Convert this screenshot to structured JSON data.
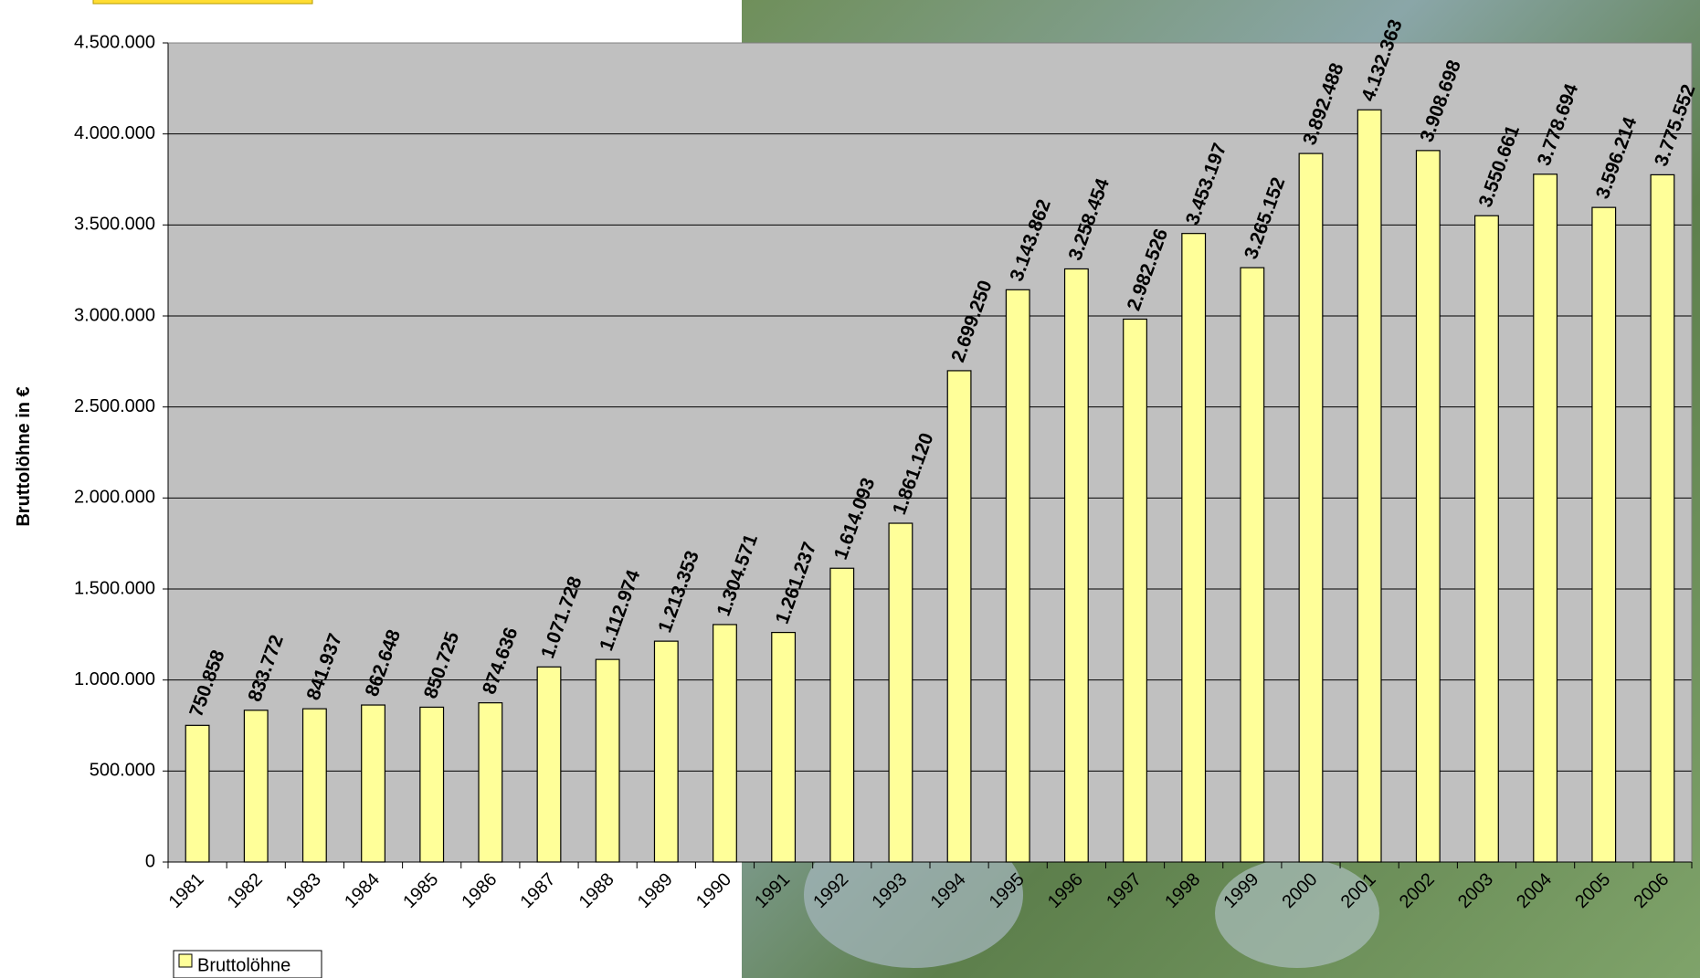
{
  "chart_data": {
    "type": "bar",
    "ylabel": "Bruttolöhne in €",
    "categories": [
      "1981",
      "1982",
      "1983",
      "1984",
      "1985",
      "1986",
      "1987",
      "1988",
      "1989",
      "1990",
      "1991",
      "1992",
      "1993",
      "1994",
      "1995",
      "1996",
      "1997",
      "1998",
      "1999",
      "2000",
      "2001",
      "2002",
      "2003",
      "2004",
      "2005",
      "2006"
    ],
    "series": [
      {
        "name": "Bruttolöhne",
        "color": "#ffff99",
        "values": [
          750858,
          833772,
          841937,
          862648,
          850725,
          874636,
          1071728,
          1112974,
          1213353,
          1304571,
          1261237,
          1614093,
          1861120,
          2699250,
          3143862,
          3258454,
          2982526,
          3453197,
          3265152,
          3892488,
          4132363,
          3908698,
          3550661,
          3778694,
          3596214,
          3775552
        ],
        "value_labels": [
          "750.858",
          "833.772",
          "841.937",
          "862.648",
          "850.725",
          "874.636",
          "1.071.728",
          "1.112.974",
          "1.213.353",
          "1.304.571",
          "1.261.237",
          "1.614.093",
          "1.861.120",
          "2.699.250",
          "3.143.862",
          "3.258.454",
          "2.982.526",
          "3.453.197",
          "3.265.152",
          "3.892.488",
          "4.132.363",
          "3.908.698",
          "3.550.661",
          "3.778.694",
          "3.596.214",
          "3.775.552"
        ]
      }
    ],
    "ylim": [
      0,
      4500000
    ],
    "yticks": [
      0,
      {
        "value": 500000,
        "label": "500.000"
      },
      {
        "value": 1000000,
        "label": "1.000.000"
      },
      {
        "value": 1500000,
        "label": "1.500.000"
      },
      {
        "value": 2000000,
        "label": "2.000.000"
      },
      {
        "value": 2500000,
        "label": "2.500.000"
      },
      {
        "value": 3000000,
        "label": "3.000.000"
      },
      {
        "value": 3500000,
        "label": "3.500.000"
      },
      {
        "value": 4000000,
        "label": "4.000.000"
      },
      {
        "value": 4500000,
        "label": "4.500.000"
      }
    ],
    "grid": true
  }
}
